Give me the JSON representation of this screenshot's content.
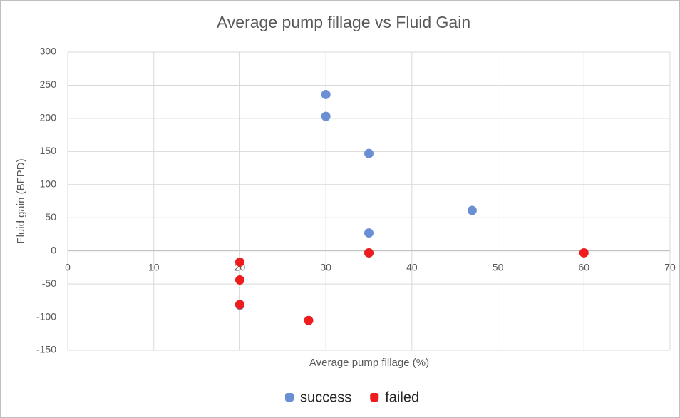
{
  "chart_data": {
    "type": "scatter",
    "title": "Average pump fillage vs Fluid Gain",
    "x_label": "Average pump fillage (%)",
    "y_label": "Fluid gain (BFPD)",
    "xlim": [
      0,
      70
    ],
    "xticks": [
      0,
      10,
      20,
      30,
      40,
      50,
      60,
      70
    ],
    "ylim": [
      -150,
      300
    ],
    "yticks": [
      -150,
      -100,
      -50,
      0,
      50,
      100,
      150,
      200,
      250,
      300
    ],
    "grid": true,
    "legend": "bottom",
    "series": [
      {
        "name": "success",
        "color": "#6a8fd4",
        "x": [
          30,
          30,
          35,
          35,
          35,
          47,
          20
        ],
        "values": [
          236,
          203,
          147,
          27,
          -3,
          61,
          -82
        ]
      },
      {
        "name": "failed",
        "color": "#ee1c1c",
        "x": [
          20,
          20,
          20,
          28,
          35,
          60
        ],
        "values": [
          -17,
          -44,
          -81,
          -105,
          -3,
          -3
        ]
      }
    ]
  }
}
